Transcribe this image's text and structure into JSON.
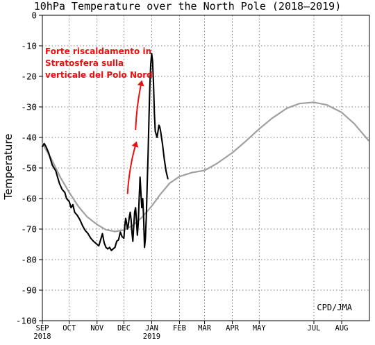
{
  "chart_data": {
    "type": "line",
    "title": "10hPa Temperature over the North Pole (2018–2019)",
    "ylabel": "Temperature",
    "xlabel": "",
    "ylim": [
      -100,
      0
    ],
    "yticks": [
      0,
      -10,
      -20,
      -30,
      -40,
      -50,
      -60,
      -70,
      -80,
      -90,
      -100
    ],
    "xlim": [
      "2018-09-01",
      "2019-08-31"
    ],
    "months": [
      {
        "label": "SEP",
        "date": "2018-09-01"
      },
      {
        "label": "OCT",
        "date": "2018-10-01"
      },
      {
        "label": "NOV",
        "date": "2018-11-01"
      },
      {
        "label": "DEC",
        "date": "2018-12-01"
      },
      {
        "label": "JAN",
        "date": "2019-01-01"
      },
      {
        "label": "FEB",
        "date": "2019-02-01"
      },
      {
        "label": "MAR",
        "date": "2019-03-01"
      },
      {
        "label": "APR",
        "date": "2019-04-01"
      },
      {
        "label": "MAY",
        "date": "2019-05-01"
      },
      {
        "label": "JUL",
        "date": "2019-07-01"
      },
      {
        "label": "AUG",
        "date": "2019-08-01"
      }
    ],
    "year_labels": [
      {
        "label": "2018",
        "date": "2018-09-01"
      },
      {
        "label": "2019",
        "date": "2019-01-01"
      }
    ],
    "grid": true,
    "series": [
      {
        "color": "#a0a0a0",
        "points": [
          [
            "2018-09-01",
            -42
          ],
          [
            "2018-09-11",
            -47
          ],
          [
            "2018-09-21",
            -53
          ],
          [
            "2018-10-01",
            -58
          ],
          [
            "2018-10-11",
            -62.5
          ],
          [
            "2018-10-21",
            -66
          ],
          [
            "2018-11-01",
            -68.5
          ],
          [
            "2018-11-11",
            -70.2
          ],
          [
            "2018-11-21",
            -70.8
          ],
          [
            "2018-12-01",
            -70.3
          ],
          [
            "2018-12-11",
            -68.8
          ],
          [
            "2018-12-21",
            -66.2
          ],
          [
            "2019-01-01",
            -62.5
          ],
          [
            "2019-01-11",
            -58.5
          ],
          [
            "2019-01-21",
            -55
          ],
          [
            "2019-02-01",
            -52.8
          ],
          [
            "2019-02-15",
            -51.5
          ],
          [
            "2019-03-01",
            -50.8
          ],
          [
            "2019-03-15",
            -48.5
          ],
          [
            "2019-04-01",
            -45
          ],
          [
            "2019-04-15",
            -41.5
          ],
          [
            "2019-05-01",
            -37.2
          ],
          [
            "2019-05-15",
            -33.8
          ],
          [
            "2019-06-01",
            -30.4
          ],
          [
            "2019-06-15",
            -28.9
          ],
          [
            "2019-07-01",
            -28.5
          ],
          [
            "2019-07-15",
            -29.3
          ],
          [
            "2019-08-01",
            -31.8
          ],
          [
            "2019-08-15",
            -35.5
          ],
          [
            "2019-08-31",
            -41
          ]
        ]
      },
      {
        "color": "#000000",
        "points": [
          [
            "2018-09-01",
            -43
          ],
          [
            "2018-09-03",
            -42
          ],
          [
            "2018-09-05",
            -43
          ],
          [
            "2018-09-08",
            -45
          ],
          [
            "2018-09-10",
            -47
          ],
          [
            "2018-09-12",
            -49
          ],
          [
            "2018-09-14",
            -50
          ],
          [
            "2018-09-16",
            -51
          ],
          [
            "2018-09-18",
            -53
          ],
          [
            "2018-09-20",
            -55
          ],
          [
            "2018-09-23",
            -57
          ],
          [
            "2018-09-26",
            -58
          ],
          [
            "2018-09-28",
            -60
          ],
          [
            "2018-10-01",
            -61
          ],
          [
            "2018-10-03",
            -63
          ],
          [
            "2018-10-05",
            -62
          ],
          [
            "2018-10-07",
            -64.5
          ],
          [
            "2018-10-10",
            -65.5
          ],
          [
            "2018-10-13",
            -67
          ],
          [
            "2018-10-16",
            -69
          ],
          [
            "2018-10-19",
            -70.5
          ],
          [
            "2018-10-22",
            -71.5
          ],
          [
            "2018-10-25",
            -73
          ],
          [
            "2018-10-28",
            -74
          ],
          [
            "2018-11-01",
            -75
          ],
          [
            "2018-11-03",
            -75.5
          ],
          [
            "2018-11-05",
            -73.5
          ],
          [
            "2018-11-07",
            -71.5
          ],
          [
            "2018-11-09",
            -74.5
          ],
          [
            "2018-11-11",
            -76
          ],
          [
            "2018-11-13",
            -76.5
          ],
          [
            "2018-11-15",
            -76
          ],
          [
            "2018-11-17",
            -77
          ],
          [
            "2018-11-19",
            -76.5
          ],
          [
            "2018-11-21",
            -76
          ],
          [
            "2018-11-23",
            -74
          ],
          [
            "2018-11-25",
            -73.5
          ],
          [
            "2018-11-27",
            -71
          ],
          [
            "2018-11-29",
            -72.5
          ],
          [
            "2018-12-01",
            -73
          ],
          [
            "2018-12-02",
            -69
          ],
          [
            "2018-12-03",
            -66.5
          ],
          [
            "2018-12-04",
            -68
          ],
          [
            "2018-12-05",
            -70
          ],
          [
            "2018-12-06",
            -68.5
          ],
          [
            "2018-12-07",
            -66
          ],
          [
            "2018-12-08",
            -64.5
          ],
          [
            "2018-12-09",
            -67
          ],
          [
            "2018-12-10",
            -71
          ],
          [
            "2018-12-11",
            -74
          ],
          [
            "2018-12-12",
            -69
          ],
          [
            "2018-12-13",
            -64.5
          ],
          [
            "2018-12-14",
            -63
          ],
          [
            "2018-12-15",
            -67
          ],
          [
            "2018-12-16",
            -72
          ],
          [
            "2018-12-17",
            -68
          ],
          [
            "2018-12-18",
            -60
          ],
          [
            "2018-12-19",
            -53
          ],
          [
            "2018-12-20",
            -58
          ],
          [
            "2018-12-21",
            -63
          ],
          [
            "2018-12-22",
            -60
          ],
          [
            "2018-12-23",
            -66
          ],
          [
            "2018-12-24",
            -76
          ],
          [
            "2018-12-25",
            -73
          ],
          [
            "2018-12-26",
            -66
          ],
          [
            "2018-12-27",
            -55
          ],
          [
            "2018-12-28",
            -45
          ],
          [
            "2018-12-29",
            -33
          ],
          [
            "2018-12-30",
            -23
          ],
          [
            "2018-12-31",
            -16
          ],
          [
            "2019-01-01",
            -12.5
          ],
          [
            "2019-01-02",
            -15
          ],
          [
            "2019-01-03",
            -22
          ],
          [
            "2019-01-04",
            -32
          ],
          [
            "2019-01-05",
            -38
          ],
          [
            "2019-01-06",
            -39
          ],
          [
            "2019-01-07",
            -40
          ],
          [
            "2019-01-08",
            -38
          ],
          [
            "2019-01-09",
            -36
          ],
          [
            "2019-01-10",
            -36.5
          ],
          [
            "2019-01-11",
            -38
          ],
          [
            "2019-01-13",
            -42
          ],
          [
            "2019-01-15",
            -47
          ],
          [
            "2019-01-17",
            -51
          ],
          [
            "2019-01-19",
            -53.5
          ]
        ]
      }
    ],
    "annotation": {
      "lines": [
        "Forte riscaldamento in",
        "Stratosfera sulla",
        "verticale del Polo Nord"
      ],
      "color": "#e81010",
      "arrows": [
        {
          "from": [
            "2018-12-05",
            -58.5
          ],
          "to": [
            "2018-12-15",
            -41.5
          ]
        },
        {
          "from": [
            "2018-12-14",
            -37.5
          ],
          "to": [
            "2018-12-21",
            -21.5
          ]
        }
      ]
    },
    "credit": "CPD/JMA"
  }
}
